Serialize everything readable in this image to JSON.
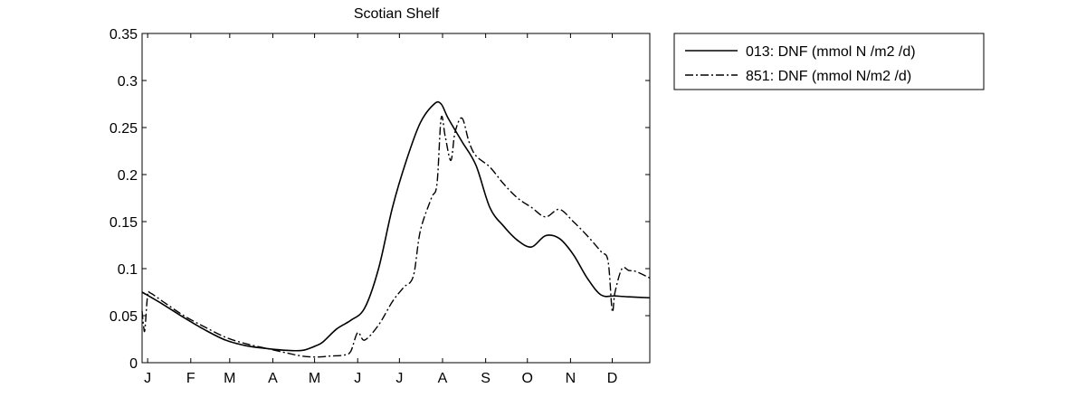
{
  "chart_data": {
    "type": "line",
    "title": "Scotian Shelf",
    "xlabel": "",
    "ylabel": "",
    "xlim": [
      0,
      365
    ],
    "ylim": [
      0,
      0.35
    ],
    "grid": false,
    "legend_position": "outside-top-right",
    "x_tick_labels": [
      "J",
      "F",
      "M",
      "A",
      "M",
      "J",
      "J",
      "A",
      "S",
      "O",
      "N",
      "D"
    ],
    "x_tick_values": [
      4,
      35,
      63,
      94,
      124,
      155,
      185,
      216,
      247,
      277,
      308,
      338
    ],
    "y_ticks": [
      0,
      0.05,
      0.1,
      0.15,
      0.2,
      0.25,
      0.3,
      0.35
    ],
    "y_tick_labels": [
      "0",
      "0.05",
      "0.1",
      "0.15",
      "0.2",
      "0.25",
      "0.3",
      "0.35"
    ],
    "series": [
      {
        "name": "013: DNF (mmol N /m2 /d)",
        "line_style": "solid",
        "x": [
          0,
          15,
          30,
          45,
          60,
          75,
          90,
          105,
          115,
          120,
          125,
          130,
          140,
          150,
          160,
          170,
          180,
          190,
          200,
          210,
          215,
          220,
          230,
          240,
          250,
          260,
          270,
          280,
          290,
          300,
          310,
          320,
          330,
          340,
          350,
          365
        ],
        "y": [
          0.075,
          0.062,
          0.048,
          0.035,
          0.024,
          0.018,
          0.015,
          0.013,
          0.013,
          0.015,
          0.018,
          0.022,
          0.036,
          0.045,
          0.058,
          0.1,
          0.165,
          0.215,
          0.255,
          0.275,
          0.275,
          0.26,
          0.235,
          0.21,
          0.165,
          0.145,
          0.13,
          0.123,
          0.135,
          0.132,
          0.115,
          0.09,
          0.072,
          0.071,
          0.07,
          0.069
        ]
      },
      {
        "name": "851: DNF (mmol N/m2 /d)",
        "line_style": "dashdot",
        "x": [
          0,
          1,
          2,
          4,
          6,
          15,
          30,
          45,
          60,
          75,
          90,
          105,
          115,
          125,
          135,
          145,
          150,
          155,
          160,
          170,
          180,
          188,
          195,
          200,
          208,
          212,
          215,
          218,
          222,
          225,
          230,
          235,
          240,
          250,
          260,
          270,
          280,
          290,
          300,
          310,
          320,
          330,
          335,
          338,
          340,
          345,
          350,
          355,
          365
        ],
        "y": [
          0.055,
          0.04,
          0.035,
          0.072,
          0.074,
          0.065,
          0.05,
          0.038,
          0.027,
          0.02,
          0.015,
          0.01,
          0.007,
          0.006,
          0.007,
          0.008,
          0.012,
          0.032,
          0.024,
          0.04,
          0.065,
          0.08,
          0.092,
          0.14,
          0.175,
          0.19,
          0.26,
          0.24,
          0.215,
          0.245,
          0.26,
          0.235,
          0.22,
          0.208,
          0.19,
          0.175,
          0.165,
          0.155,
          0.163,
          0.15,
          0.135,
          0.118,
          0.108,
          0.055,
          0.075,
          0.1,
          0.098,
          0.097,
          0.09
        ]
      }
    ]
  }
}
